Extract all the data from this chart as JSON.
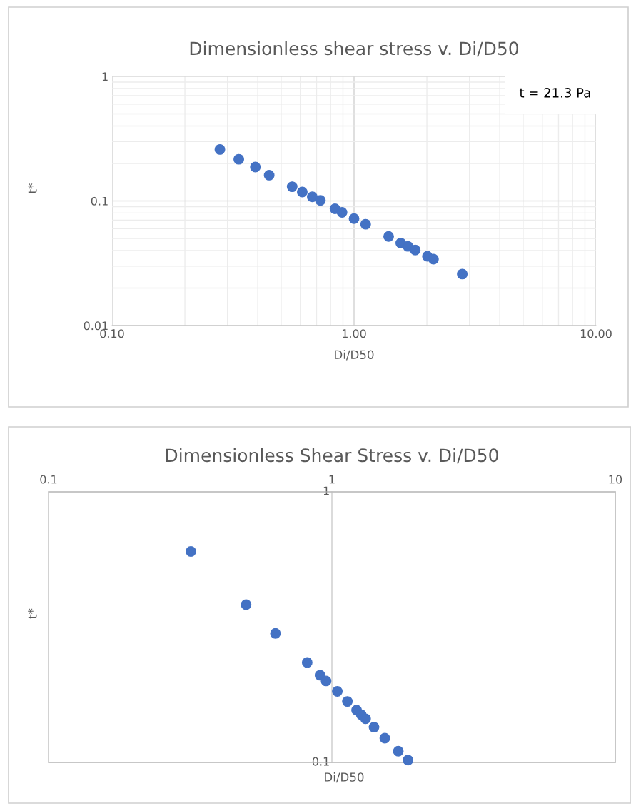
{
  "chart_data": [
    {
      "type": "scatter",
      "title": "Dimensionless shear stress v. Di/D50",
      "xlabel": "Di/D50",
      "ylabel": "t*",
      "log": "xy",
      "grid": true,
      "marker": "circle",
      "x": [
        0.279,
        0.334,
        0.391,
        0.446,
        0.555,
        0.611,
        0.672,
        0.726,
        0.834,
        0.892,
        1.0,
        1.117,
        1.39,
        1.56,
        1.67,
        1.79,
        2.01,
        2.13,
        2.8
      ],
      "series": [
        {
          "color": "#4472c4",
          "values": [
            0.259,
            0.216,
            0.187,
            0.161,
            0.13,
            0.118,
            0.108,
            0.101,
            0.0865,
            0.081,
            0.0721,
            0.065,
            0.0519,
            0.0459,
            0.0432,
            0.0404,
            0.036,
            0.0341,
            0.0259
          ]
        }
      ],
      "xlim": [
        0.1,
        10
      ],
      "ylim": [
        0.01,
        1
      ],
      "xticks": [
        {
          "value": 0.1,
          "label": "0.10"
        },
        {
          "value": 1,
          "label": "1.00"
        },
        {
          "value": 10,
          "label": "10.00"
        }
      ],
      "yticks": [
        0.01,
        0.1,
        1
      ],
      "annotations": [
        "t = 21.3 Pa"
      ]
    },
    {
      "type": "scatter",
      "title": "Dimensionless Shear Stress v. Di/D50",
      "xlabel": "Di/D50",
      "ylabel": "t*",
      "log": "xy",
      "marker": "circle",
      "x": [
        0.318,
        0.498,
        0.632,
        0.818,
        0.908,
        0.954,
        1.045,
        1.134,
        1.222,
        1.27,
        1.315,
        1.408,
        1.537,
        1.715,
        1.856
      ],
      "series": [
        {
          "color": "#4472c4",
          "values": [
            0.602,
            0.383,
            0.3,
            0.234,
            0.21,
            0.2,
            0.183,
            0.168,
            0.156,
            0.15,
            0.145,
            0.135,
            0.123,
            0.11,
            0.102
          ]
        }
      ],
      "xlim": [
        0.1,
        10
      ],
      "ylim": [
        0.1,
        1
      ],
      "xticks": [
        0.1,
        1,
        10
      ],
      "yticks": [
        0.1,
        1
      ]
    }
  ]
}
